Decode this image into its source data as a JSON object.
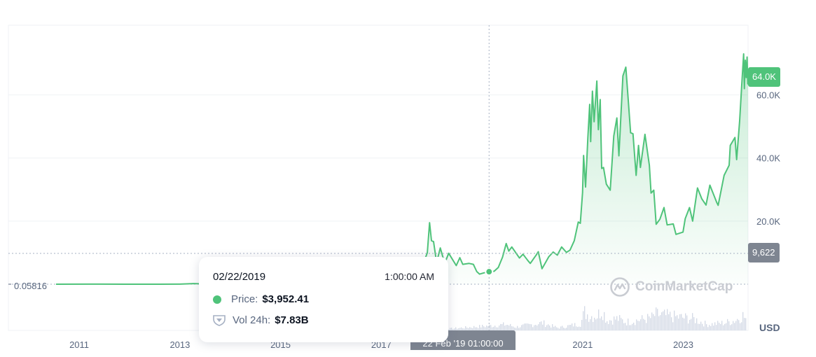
{
  "chart_data": {
    "type": "area",
    "currency_label": "USD",
    "x_range": [
      "2010-07-17",
      "2024-04-15"
    ],
    "ylim": [
      0,
      73000
    ],
    "y_ticks": [
      {
        "value": 20000,
        "label": "20.0K"
      },
      {
        "value": 40000,
        "label": "40.0K"
      },
      {
        "value": 60000,
        "label": "60.0K"
      }
    ],
    "x_ticks": [
      {
        "date": "2011-01-01",
        "label": "2011"
      },
      {
        "date": "2013-01-01",
        "label": "2013"
      },
      {
        "date": "2015-01-01",
        "label": "2015"
      },
      {
        "date": "2017-01-01",
        "label": "2017"
      },
      {
        "date": "2021-01-01",
        "label": "2021"
      },
      {
        "date": "2023-01-01",
        "label": "2023"
      }
    ],
    "start_value_label": "0.05816",
    "current_value_label": "64.0K",
    "crosshair": {
      "date": "2019-02-22",
      "y_label": "9,622",
      "x_label": "22 Feb '19 01:00:00"
    },
    "price_series": {
      "name": "Price",
      "points": [
        [
          "2010-07-17",
          0.06
        ],
        [
          "2011-06-01",
          15
        ],
        [
          "2011-12-01",
          3
        ],
        [
          "2012-08-01",
          11
        ],
        [
          "2012-12-31",
          13
        ],
        [
          "2013-04-10",
          200
        ],
        [
          "2013-07-01",
          90
        ],
        [
          "2013-10-01",
          130
        ],
        [
          "2013-12-04",
          1150
        ],
        [
          "2014-01-15",
          850
        ],
        [
          "2014-06-01",
          650
        ],
        [
          "2014-12-31",
          320
        ],
        [
          "2015-06-01",
          230
        ],
        [
          "2015-12-31",
          430
        ],
        [
          "2016-06-01",
          600
        ],
        [
          "2016-12-31",
          960
        ],
        [
          "2017-03-01",
          1200
        ],
        [
          "2017-06-01",
          2500
        ],
        [
          "2017-08-01",
          2800
        ],
        [
          "2017-09-01",
          4700
        ],
        [
          "2017-10-01",
          4400
        ],
        [
          "2017-11-01",
          6400
        ],
        [
          "2017-12-01",
          10000
        ],
        [
          "2017-12-17",
          19500
        ],
        [
          "2017-12-31",
          13800
        ],
        [
          "2018-01-15",
          13500
        ],
        [
          "2018-02-06",
          6900
        ],
        [
          "2018-03-05",
          11500
        ],
        [
          "2018-04-06",
          6600
        ],
        [
          "2018-05-05",
          9800
        ],
        [
          "2018-06-29",
          5900
        ],
        [
          "2018-07-25",
          8400
        ],
        [
          "2018-08-15",
          6300
        ],
        [
          "2018-09-30",
          6600
        ],
        [
          "2018-10-31",
          6300
        ],
        [
          "2018-11-25",
          4000
        ],
        [
          "2018-12-15",
          3200
        ],
        [
          "2019-01-15",
          3600
        ],
        [
          "2019-02-22",
          3952.41
        ],
        [
          "2019-03-31",
          4100
        ],
        [
          "2019-04-30",
          5300
        ],
        [
          "2019-05-31",
          8600
        ],
        [
          "2019-06-26",
          12900
        ],
        [
          "2019-07-15",
          10500
        ],
        [
          "2019-08-06",
          11800
        ],
        [
          "2019-09-30",
          8300
        ],
        [
          "2019-10-26",
          9500
        ],
        [
          "2019-11-30",
          7500
        ],
        [
          "2019-12-18",
          6600
        ],
        [
          "2020-01-31",
          9350
        ],
        [
          "2020-02-14",
          10300
        ],
        [
          "2020-03-12",
          4900
        ],
        [
          "2020-03-31",
          6400
        ],
        [
          "2020-04-30",
          8700
        ],
        [
          "2020-06-01",
          10200
        ],
        [
          "2020-07-01",
          9200
        ],
        [
          "2020-08-01",
          11800
        ],
        [
          "2020-09-05",
          10100
        ],
        [
          "2020-10-01",
          10800
        ],
        [
          "2020-11-01",
          13800
        ],
        [
          "2020-11-30",
          19700
        ],
        [
          "2020-12-15",
          19300
        ],
        [
          "2020-12-31",
          29000
        ],
        [
          "2021-01-08",
          40800
        ],
        [
          "2021-01-22",
          30800
        ],
        [
          "2021-02-08",
          46500
        ],
        [
          "2021-02-21",
          57000
        ],
        [
          "2021-02-28",
          45200
        ],
        [
          "2021-03-13",
          61200
        ],
        [
          "2021-03-25",
          51500
        ],
        [
          "2021-04-14",
          64400
        ],
        [
          "2021-04-25",
          49000
        ],
        [
          "2021-05-08",
          58500
        ],
        [
          "2021-05-19",
          36700
        ],
        [
          "2021-06-01",
          37000
        ],
        [
          "2021-06-22",
          31700
        ],
        [
          "2021-07-20",
          29800
        ],
        [
          "2021-08-15",
          47000
        ],
        [
          "2021-09-06",
          52700
        ],
        [
          "2021-09-21",
          40700
        ],
        [
          "2021-10-20",
          66000
        ],
        [
          "2021-11-10",
          68800
        ],
        [
          "2021-11-30",
          57000
        ],
        [
          "2021-12-15",
          48000
        ],
        [
          "2022-01-01",
          47700
        ],
        [
          "2022-01-24",
          34500
        ],
        [
          "2022-02-10",
          44000
        ],
        [
          "2022-02-24",
          37000
        ],
        [
          "2022-03-29",
          47500
        ],
        [
          "2022-04-30",
          37700
        ],
        [
          "2022-05-12",
          28900
        ],
        [
          "2022-06-01",
          29800
        ],
        [
          "2022-06-18",
          19000
        ],
        [
          "2022-07-15",
          20600
        ],
        [
          "2022-08-14",
          24300
        ],
        [
          "2022-09-06",
          18800
        ],
        [
          "2022-10-20",
          19100
        ],
        [
          "2022-11-09",
          15800
        ],
        [
          "2022-12-30",
          16500
        ],
        [
          "2023-01-15",
          20800
        ],
        [
          "2023-02-15",
          24300
        ],
        [
          "2023-03-10",
          20000
        ],
        [
          "2023-04-14",
          30500
        ],
        [
          "2023-05-15",
          27100
        ],
        [
          "2023-06-15",
          25100
        ],
        [
          "2023-07-13",
          31400
        ],
        [
          "2023-08-31",
          26000
        ],
        [
          "2023-09-11",
          25000
        ],
        [
          "2023-10-24",
          34500
        ],
        [
          "2023-11-30",
          37700
        ],
        [
          "2023-12-08",
          44000
        ],
        [
          "2024-01-11",
          46500
        ],
        [
          "2024-01-23",
          39500
        ],
        [
          "2024-02-14",
          51800
        ],
        [
          "2024-02-28",
          62500
        ],
        [
          "2024-03-14",
          73000
        ],
        [
          "2024-03-19",
          62000
        ],
        [
          "2024-03-26",
          71000
        ],
        [
          "2024-04-02",
          65500
        ],
        [
          "2024-04-08",
          72000
        ],
        [
          "2024-04-13",
          63500
        ],
        [
          "2024-04-15",
          64000
        ]
      ]
    },
    "volume_series": {
      "name": "Vol 24h",
      "points": [
        [
          "2017-12-15",
          15
        ],
        [
          "2018-01-05",
          18
        ],
        [
          "2018-04-01",
          8
        ],
        [
          "2019-06-26",
          35
        ],
        [
          "2019-09-01",
          20
        ],
        [
          "2020-03-12",
          45
        ],
        [
          "2020-07-01",
          15
        ],
        [
          "2020-12-15",
          40
        ],
        [
          "2021-01-11",
          110
        ],
        [
          "2021-02-20",
          85
        ],
        [
          "2021-04-18",
          90
        ],
        [
          "2021-05-19",
          130
        ],
        [
          "2021-06-22",
          60
        ],
        [
          "2021-09-07",
          70
        ],
        [
          "2021-11-10",
          50
        ],
        [
          "2022-01-24",
          60
        ],
        [
          "2022-05-12",
          75
        ],
        [
          "2022-06-13",
          95
        ],
        [
          "2022-11-09",
          80
        ],
        [
          "2023-03-13",
          70
        ],
        [
          "2023-06-20",
          35
        ],
        [
          "2023-10-24",
          45
        ],
        [
          "2024-01-11",
          60
        ],
        [
          "2024-03-05",
          90
        ],
        [
          "2024-03-14",
          80
        ],
        [
          "2024-04-13",
          55
        ]
      ]
    }
  },
  "tooltip": {
    "date": "02/22/2019",
    "time": "1:00:00 AM",
    "price_label": "Price:",
    "price_value": "$3,952.41",
    "volume_label": "Vol 24h:",
    "volume_value": "$7.83B"
  },
  "watermark": {
    "text": "CoinMarketCap"
  },
  "colors": {
    "line": "#4fc37a",
    "area_top": "#4fc37a",
    "grid": "#eff2f5",
    "axis_text": "#58667e",
    "volume": "#cfd6e4",
    "crosshair": "#a6b0c3"
  }
}
